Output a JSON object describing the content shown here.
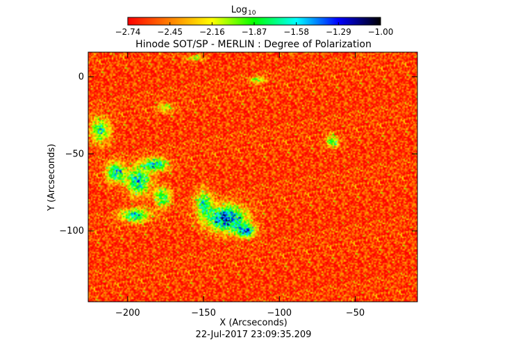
{
  "chart_data": {
    "type": "heatmap",
    "title": "Hinode SOT/SP - MERLIN : Degree of Polarization",
    "xlabel": "X (Arcseconds)",
    "ylabel": "Y (Arcseconds)",
    "xlim": [
      -226,
      -9
    ],
    "ylim": [
      -146,
      16
    ],
    "x_ticks": [
      -200,
      -150,
      -100,
      -50
    ],
    "x_tick_labels": [
      "−200",
      "−150",
      "−100",
      "−50"
    ],
    "y_ticks": [
      0,
      -50,
      -100
    ],
    "y_tick_labels": [
      "0",
      "−50",
      "−100"
    ],
    "timestamp": "22-Jul-2017 23:09:35.209",
    "colorbar": {
      "label_main": "Log",
      "label_sub": "10",
      "range": [
        -2.74,
        -1.0
      ],
      "ticks": [
        -2.74,
        -2.45,
        -2.16,
        -1.87,
        -1.58,
        -1.29,
        -1.0
      ],
      "tick_labels": [
        "−2.74",
        "−2.45",
        "−2.16",
        "−1.87",
        "−1.58",
        "−1.29",
        "−1.00"
      ],
      "colors": [
        "#ff0000",
        "#ff8000",
        "#ffff00",
        "#00ff00",
        "#00ffff",
        "#0000ff",
        "#000000"
      ]
    },
    "background_level": -2.62,
    "regions": [
      {
        "x": -135,
        "y": -92,
        "rx": 12,
        "ry": 8,
        "peak": 1.25
      },
      {
        "x": -122,
        "y": -100,
        "rx": 6,
        "ry": 4,
        "peak": 1.05
      },
      {
        "x": -150,
        "y": -82,
        "rx": 5,
        "ry": 8,
        "peak": 0.8
      },
      {
        "x": -193,
        "y": -68,
        "rx": 7,
        "ry": 8,
        "peak": 1.05
      },
      {
        "x": -208,
        "y": -62,
        "rx": 6,
        "ry": 6,
        "peak": 0.95
      },
      {
        "x": -182,
        "y": -57,
        "rx": 8,
        "ry": 4,
        "peak": 1.0
      },
      {
        "x": -195,
        "y": -90,
        "rx": 9,
        "ry": 4,
        "peak": 0.95
      },
      {
        "x": -177,
        "y": -78,
        "rx": 5,
        "ry": 6,
        "peak": 0.85
      },
      {
        "x": -218,
        "y": -35,
        "rx": 6,
        "ry": 8,
        "peak": 0.8
      },
      {
        "x": -65,
        "y": -42,
        "rx": 4,
        "ry": 4,
        "peak": 0.7
      },
      {
        "x": -114,
        "y": -2,
        "rx": 5,
        "ry": 2,
        "peak": 0.6
      },
      {
        "x": -156,
        "y": 12,
        "rx": 5,
        "ry": 2,
        "peak": 0.55
      },
      {
        "x": -175,
        "y": -20,
        "rx": 6,
        "ry": 3,
        "peak": 0.45
      }
    ]
  }
}
